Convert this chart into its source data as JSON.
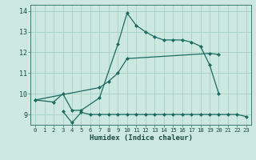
{
  "xlabel": "Humidex (Indice chaleur)",
  "background_color": "#cce8e0",
  "grid_color": "#a8d0c8",
  "line_color": "#1a6b60",
  "xlim": [
    -0.5,
    23.5
  ],
  "ylim": [
    8.5,
    14.3
  ],
  "xticks": [
    0,
    1,
    2,
    3,
    4,
    5,
    6,
    7,
    8,
    9,
    10,
    11,
    12,
    13,
    14,
    15,
    16,
    17,
    18,
    19,
    20,
    21,
    22,
    23
  ],
  "yticks": [
    9,
    10,
    11,
    12,
    13,
    14
  ],
  "line1_x": [
    0,
    2,
    3,
    4,
    5,
    7,
    9,
    10,
    11,
    12,
    13,
    14,
    15,
    16,
    17,
    18,
    19,
    20
  ],
  "line1_y": [
    9.7,
    9.6,
    10.0,
    9.2,
    9.2,
    9.8,
    12.4,
    13.9,
    13.3,
    13.0,
    12.75,
    12.6,
    12.6,
    12.6,
    12.5,
    12.3,
    11.4,
    10.0
  ],
  "line2_x": [
    0,
    7,
    8,
    9,
    10,
    19,
    20
  ],
  "line2_y": [
    9.7,
    10.3,
    10.6,
    11.0,
    11.7,
    11.95,
    11.9
  ],
  "line3_x": [
    3,
    4,
    5,
    6,
    7,
    8,
    9,
    10,
    11,
    12,
    13,
    14,
    15,
    16,
    17,
    18,
    19,
    20,
    21,
    22,
    23
  ],
  "line3_y": [
    9.15,
    8.6,
    9.1,
    9.0,
    9.0,
    9.0,
    9.0,
    9.0,
    9.0,
    9.0,
    9.0,
    9.0,
    9.0,
    9.0,
    9.0,
    9.0,
    9.0,
    9.0,
    9.0,
    9.0,
    8.9
  ]
}
